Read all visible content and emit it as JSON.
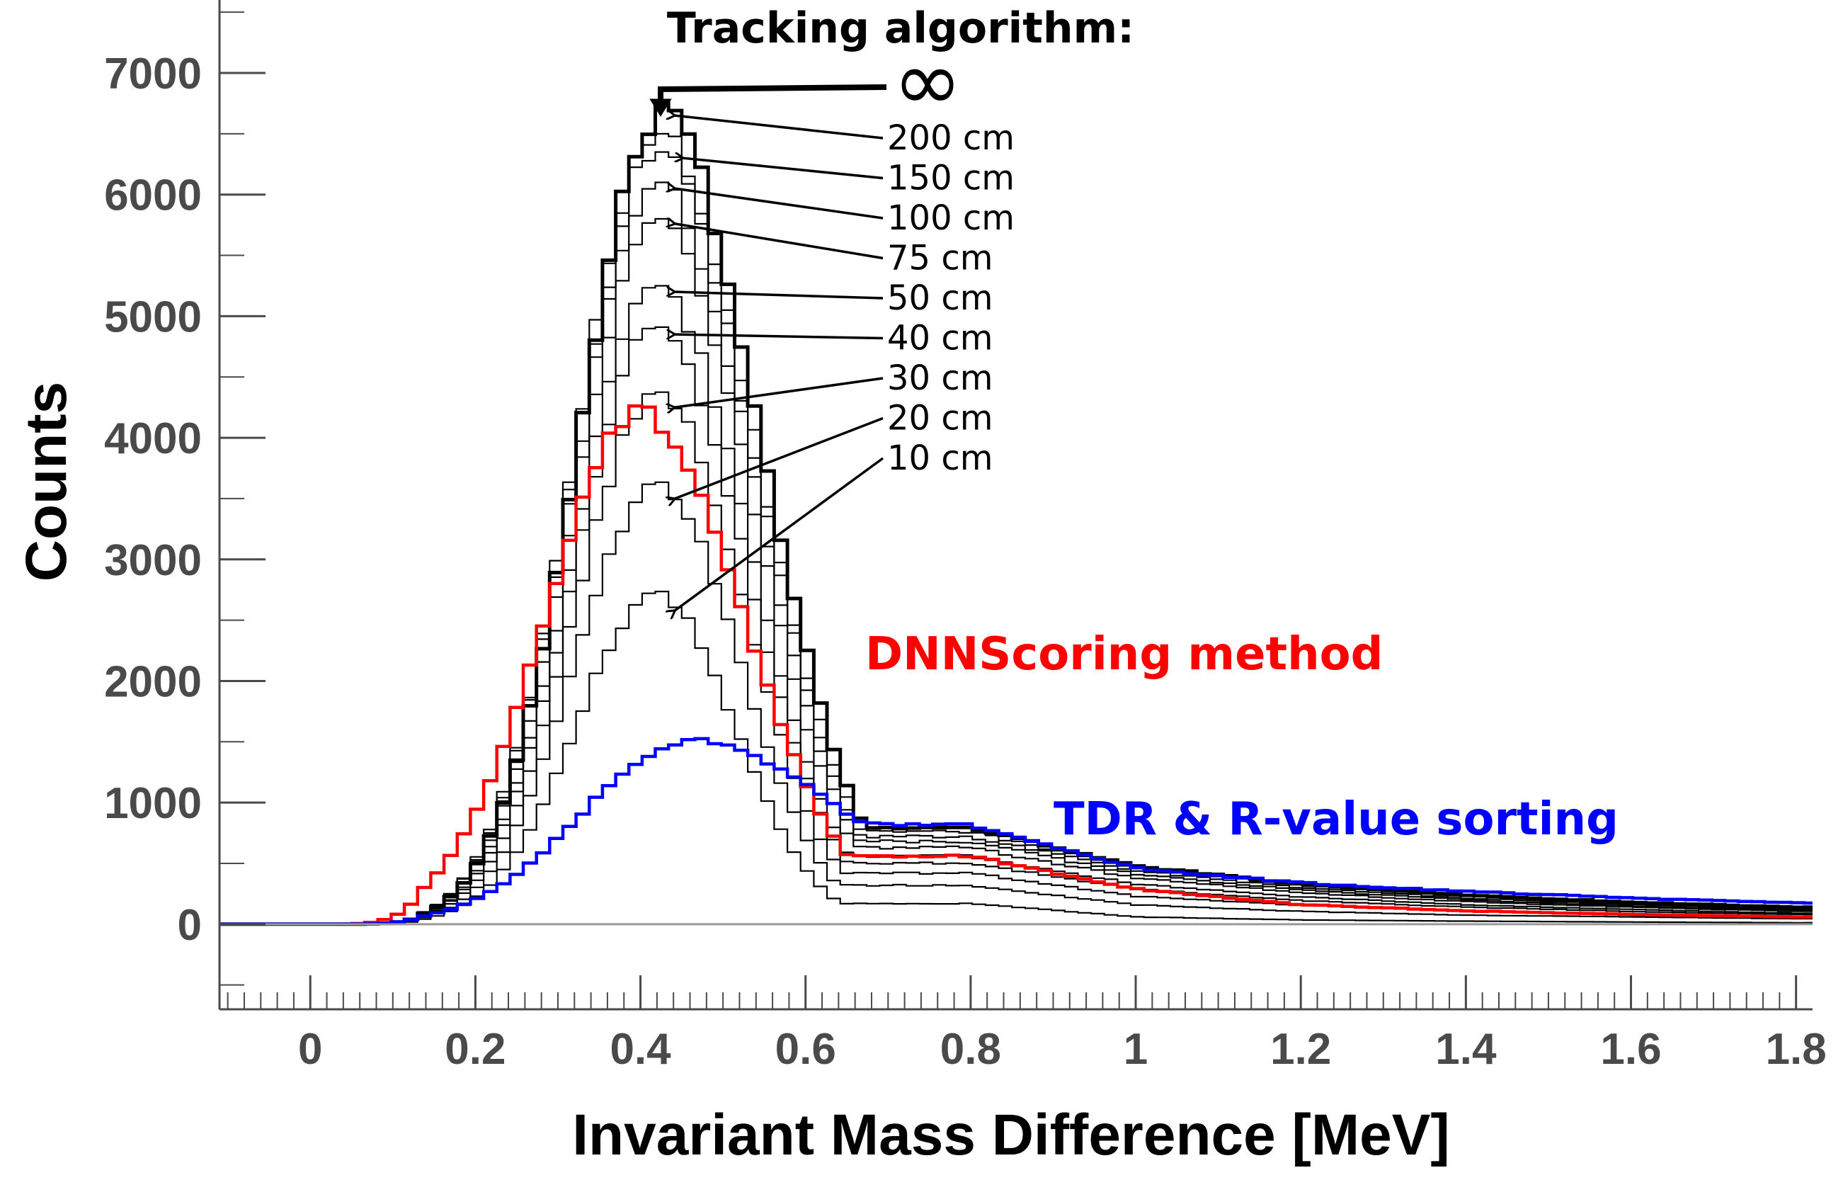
{
  "chart_data": {
    "type": "line",
    "style": "step-histogram",
    "xlabel": "Invariant Mass Difference [MeV]",
    "ylabel": "Counts",
    "xlim": [
      -0.11,
      1.82
    ],
    "ylim": [
      -700,
      7600
    ],
    "x_ticks": [
      0,
      0.2,
      0.4,
      0.6,
      0.8,
      1,
      1.2,
      1.4,
      1.6,
      1.8
    ],
    "x_tick_labels": [
      "0",
      "0.2",
      "0.4",
      "0.6",
      "0.8",
      "1",
      "1.2",
      "1.4",
      "1.6",
      "1.8"
    ],
    "y_ticks": [
      0,
      1000,
      2000,
      3000,
      4000,
      5000,
      6000,
      7000
    ],
    "y_tick_labels": [
      "0",
      "1000",
      "2000",
      "3000",
      "4000",
      "5000",
      "6000",
      "7000"
    ],
    "bin_width": 0.016,
    "grid": false,
    "annotation_title": "Tracking algorithm:",
    "infinity_symbol": "∞",
    "colors": {
      "axis": "#4a4a4a",
      "tracking": "#000000",
      "dnn": "#ff0000",
      "tdr": "#0000ff",
      "zero_line": "#999999"
    },
    "series": [
      {
        "name": "∞",
        "color": "#000000",
        "peak_x": 0.425,
        "peak": 6650,
        "w_left": 0.098,
        "w_right": 0.12,
        "tail": [
          [
            0.8,
            790
          ],
          [
            1.0,
            480
          ],
          [
            1.2,
            330
          ],
          [
            1.4,
            240
          ],
          [
            1.6,
            180
          ],
          [
            1.8,
            140
          ]
        ]
      },
      {
        "name": "200 cm",
        "color": "#000000",
        "peak_x": 0.42,
        "peak": 6500,
        "w_left": 0.098,
        "w_right": 0.12,
        "tail": [
          [
            0.8,
            760
          ],
          [
            1.0,
            460
          ],
          [
            1.2,
            320
          ],
          [
            1.4,
            230
          ],
          [
            1.6,
            170
          ],
          [
            1.8,
            130
          ]
        ]
      },
      {
        "name": "150 cm",
        "color": "#000000",
        "peak_x": 0.42,
        "peak": 6350,
        "w_left": 0.098,
        "w_right": 0.118,
        "tail": [
          [
            0.8,
            720
          ],
          [
            1.0,
            440
          ],
          [
            1.2,
            300
          ],
          [
            1.4,
            215
          ],
          [
            1.6,
            160
          ],
          [
            1.8,
            125
          ]
        ]
      },
      {
        "name": "100 cm",
        "color": "#000000",
        "peak_x": 0.42,
        "peak": 6100,
        "w_left": 0.098,
        "w_right": 0.116,
        "tail": [
          [
            0.8,
            680
          ],
          [
            1.0,
            410
          ],
          [
            1.2,
            280
          ],
          [
            1.4,
            200
          ],
          [
            1.6,
            150
          ],
          [
            1.8,
            115
          ]
        ]
      },
      {
        "name": "75 cm",
        "color": "#000000",
        "peak_x": 0.42,
        "peak": 5800,
        "w_left": 0.098,
        "w_right": 0.114,
        "tail": [
          [
            0.8,
            630
          ],
          [
            1.0,
            380
          ],
          [
            1.2,
            260
          ],
          [
            1.4,
            185
          ],
          [
            1.6,
            140
          ],
          [
            1.8,
            105
          ]
        ]
      },
      {
        "name": "50 cm",
        "color": "#000000",
        "peak_x": 0.42,
        "peak": 5250,
        "w_left": 0.098,
        "w_right": 0.11,
        "tail": [
          [
            0.8,
            560
          ],
          [
            1.0,
            330
          ],
          [
            1.2,
            225
          ],
          [
            1.4,
            160
          ],
          [
            1.6,
            120
          ],
          [
            1.8,
            90
          ]
        ]
      },
      {
        "name": "40 cm",
        "color": "#000000",
        "peak_x": 0.42,
        "peak": 4900,
        "w_left": 0.098,
        "w_right": 0.108,
        "tail": [
          [
            0.8,
            500
          ],
          [
            1.0,
            290
          ],
          [
            1.2,
            195
          ],
          [
            1.4,
            140
          ],
          [
            1.6,
            105
          ],
          [
            1.8,
            80
          ]
        ]
      },
      {
        "name": "30 cm",
        "color": "#000000",
        "peak_x": 0.42,
        "peak": 4350,
        "w_left": 0.098,
        "w_right": 0.104,
        "tail": [
          [
            0.8,
            420
          ],
          [
            1.0,
            230
          ],
          [
            1.2,
            155
          ],
          [
            1.4,
            110
          ],
          [
            1.6,
            85
          ],
          [
            1.8,
            65
          ]
        ]
      },
      {
        "name": "20 cm",
        "color": "#000000",
        "peak_x": 0.42,
        "peak": 3600,
        "w_left": 0.098,
        "w_right": 0.1,
        "tail": [
          [
            0.8,
            320
          ],
          [
            1.0,
            160
          ],
          [
            1.2,
            105
          ],
          [
            1.4,
            75
          ],
          [
            1.6,
            60
          ],
          [
            1.8,
            45
          ]
        ]
      },
      {
        "name": "10 cm",
        "color": "#000000",
        "peak_x": 0.42,
        "peak": 2700,
        "w_left": 0.098,
        "w_right": 0.095,
        "tail": [
          [
            0.8,
            170
          ],
          [
            1.0,
            60
          ],
          [
            1.2,
            35
          ],
          [
            1.4,
            25
          ],
          [
            1.6,
            18
          ],
          [
            1.8,
            12
          ]
        ]
      },
      {
        "name": "DNNScoring method",
        "color": "#ff0000",
        "peak_x": 0.4,
        "peak": 4200,
        "w_left": 0.115,
        "w_right": 0.125,
        "tail": [
          [
            0.8,
            560
          ],
          [
            1.0,
            290
          ],
          [
            1.2,
            160
          ],
          [
            1.4,
            110
          ],
          [
            1.6,
            80
          ],
          [
            1.8,
            60
          ]
        ]
      },
      {
        "name": "TDR & R-value sorting",
        "color": "#0000ff",
        "peak_x": 0.46,
        "peak": 1510,
        "w_left": 0.13,
        "w_right": 0.19,
        "tail": [
          [
            0.8,
            820
          ],
          [
            1.0,
            460
          ],
          [
            1.2,
            340
          ],
          [
            1.4,
            270
          ],
          [
            1.6,
            215
          ],
          [
            1.8,
            175
          ]
        ]
      }
    ],
    "annotations": [
      "200 cm",
      "150 cm",
      "100 cm",
      "75 cm",
      "50 cm",
      "40 cm",
      "30 cm",
      "20 cm",
      "10 cm"
    ],
    "method_labels": [
      "DNNScoring method",
      "TDR & R-value sorting"
    ]
  }
}
